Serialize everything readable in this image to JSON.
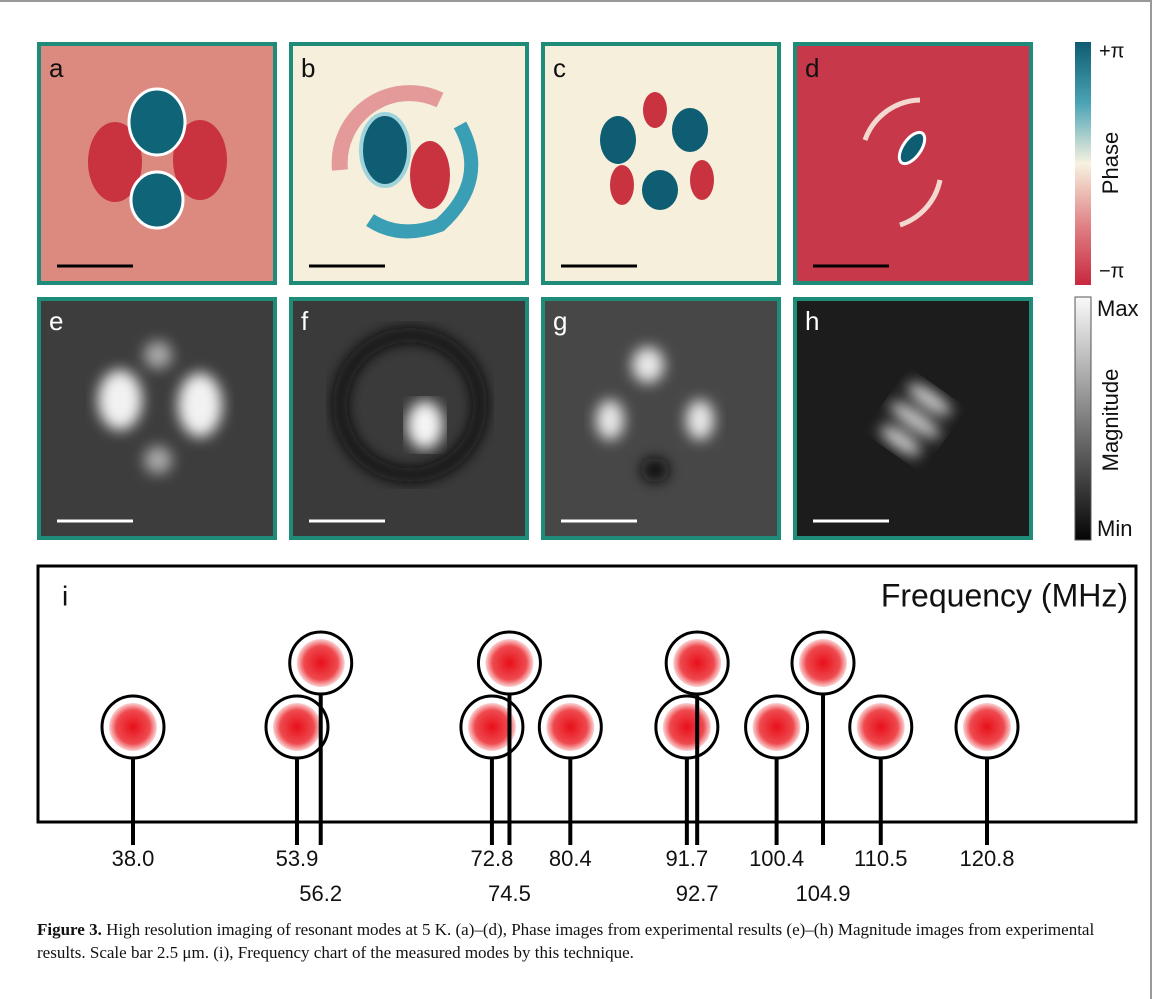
{
  "panels": {
    "phase": [
      "a",
      "b",
      "c",
      "d"
    ],
    "magnitude": [
      "e",
      "f",
      "g",
      "h"
    ]
  },
  "colorbars": {
    "phase": {
      "top": "+π",
      "label": "Phase",
      "bottom": "−π"
    },
    "magnitude": {
      "top": "Max",
      "label": "Magnitude",
      "bottom": "Min"
    }
  },
  "chart": {
    "letter": "i",
    "title": "Frequency (MHz)",
    "modes": [
      "38.0",
      "53.9",
      "56.2",
      "72.8",
      "74.5",
      "80.4",
      "91.7",
      "92.7",
      "100.4",
      "104.9",
      "110.5",
      "120.8"
    ]
  },
  "caption": {
    "label": "Figure 3.",
    "text": " High resolution imaging of resonant modes at 5 K. (a)–(d), Phase images from experimental results (e)–(h) Magnitude images from experimental results. Scale bar 2.5 μm. (i), Frequency chart of the measured modes by this technique."
  }
}
